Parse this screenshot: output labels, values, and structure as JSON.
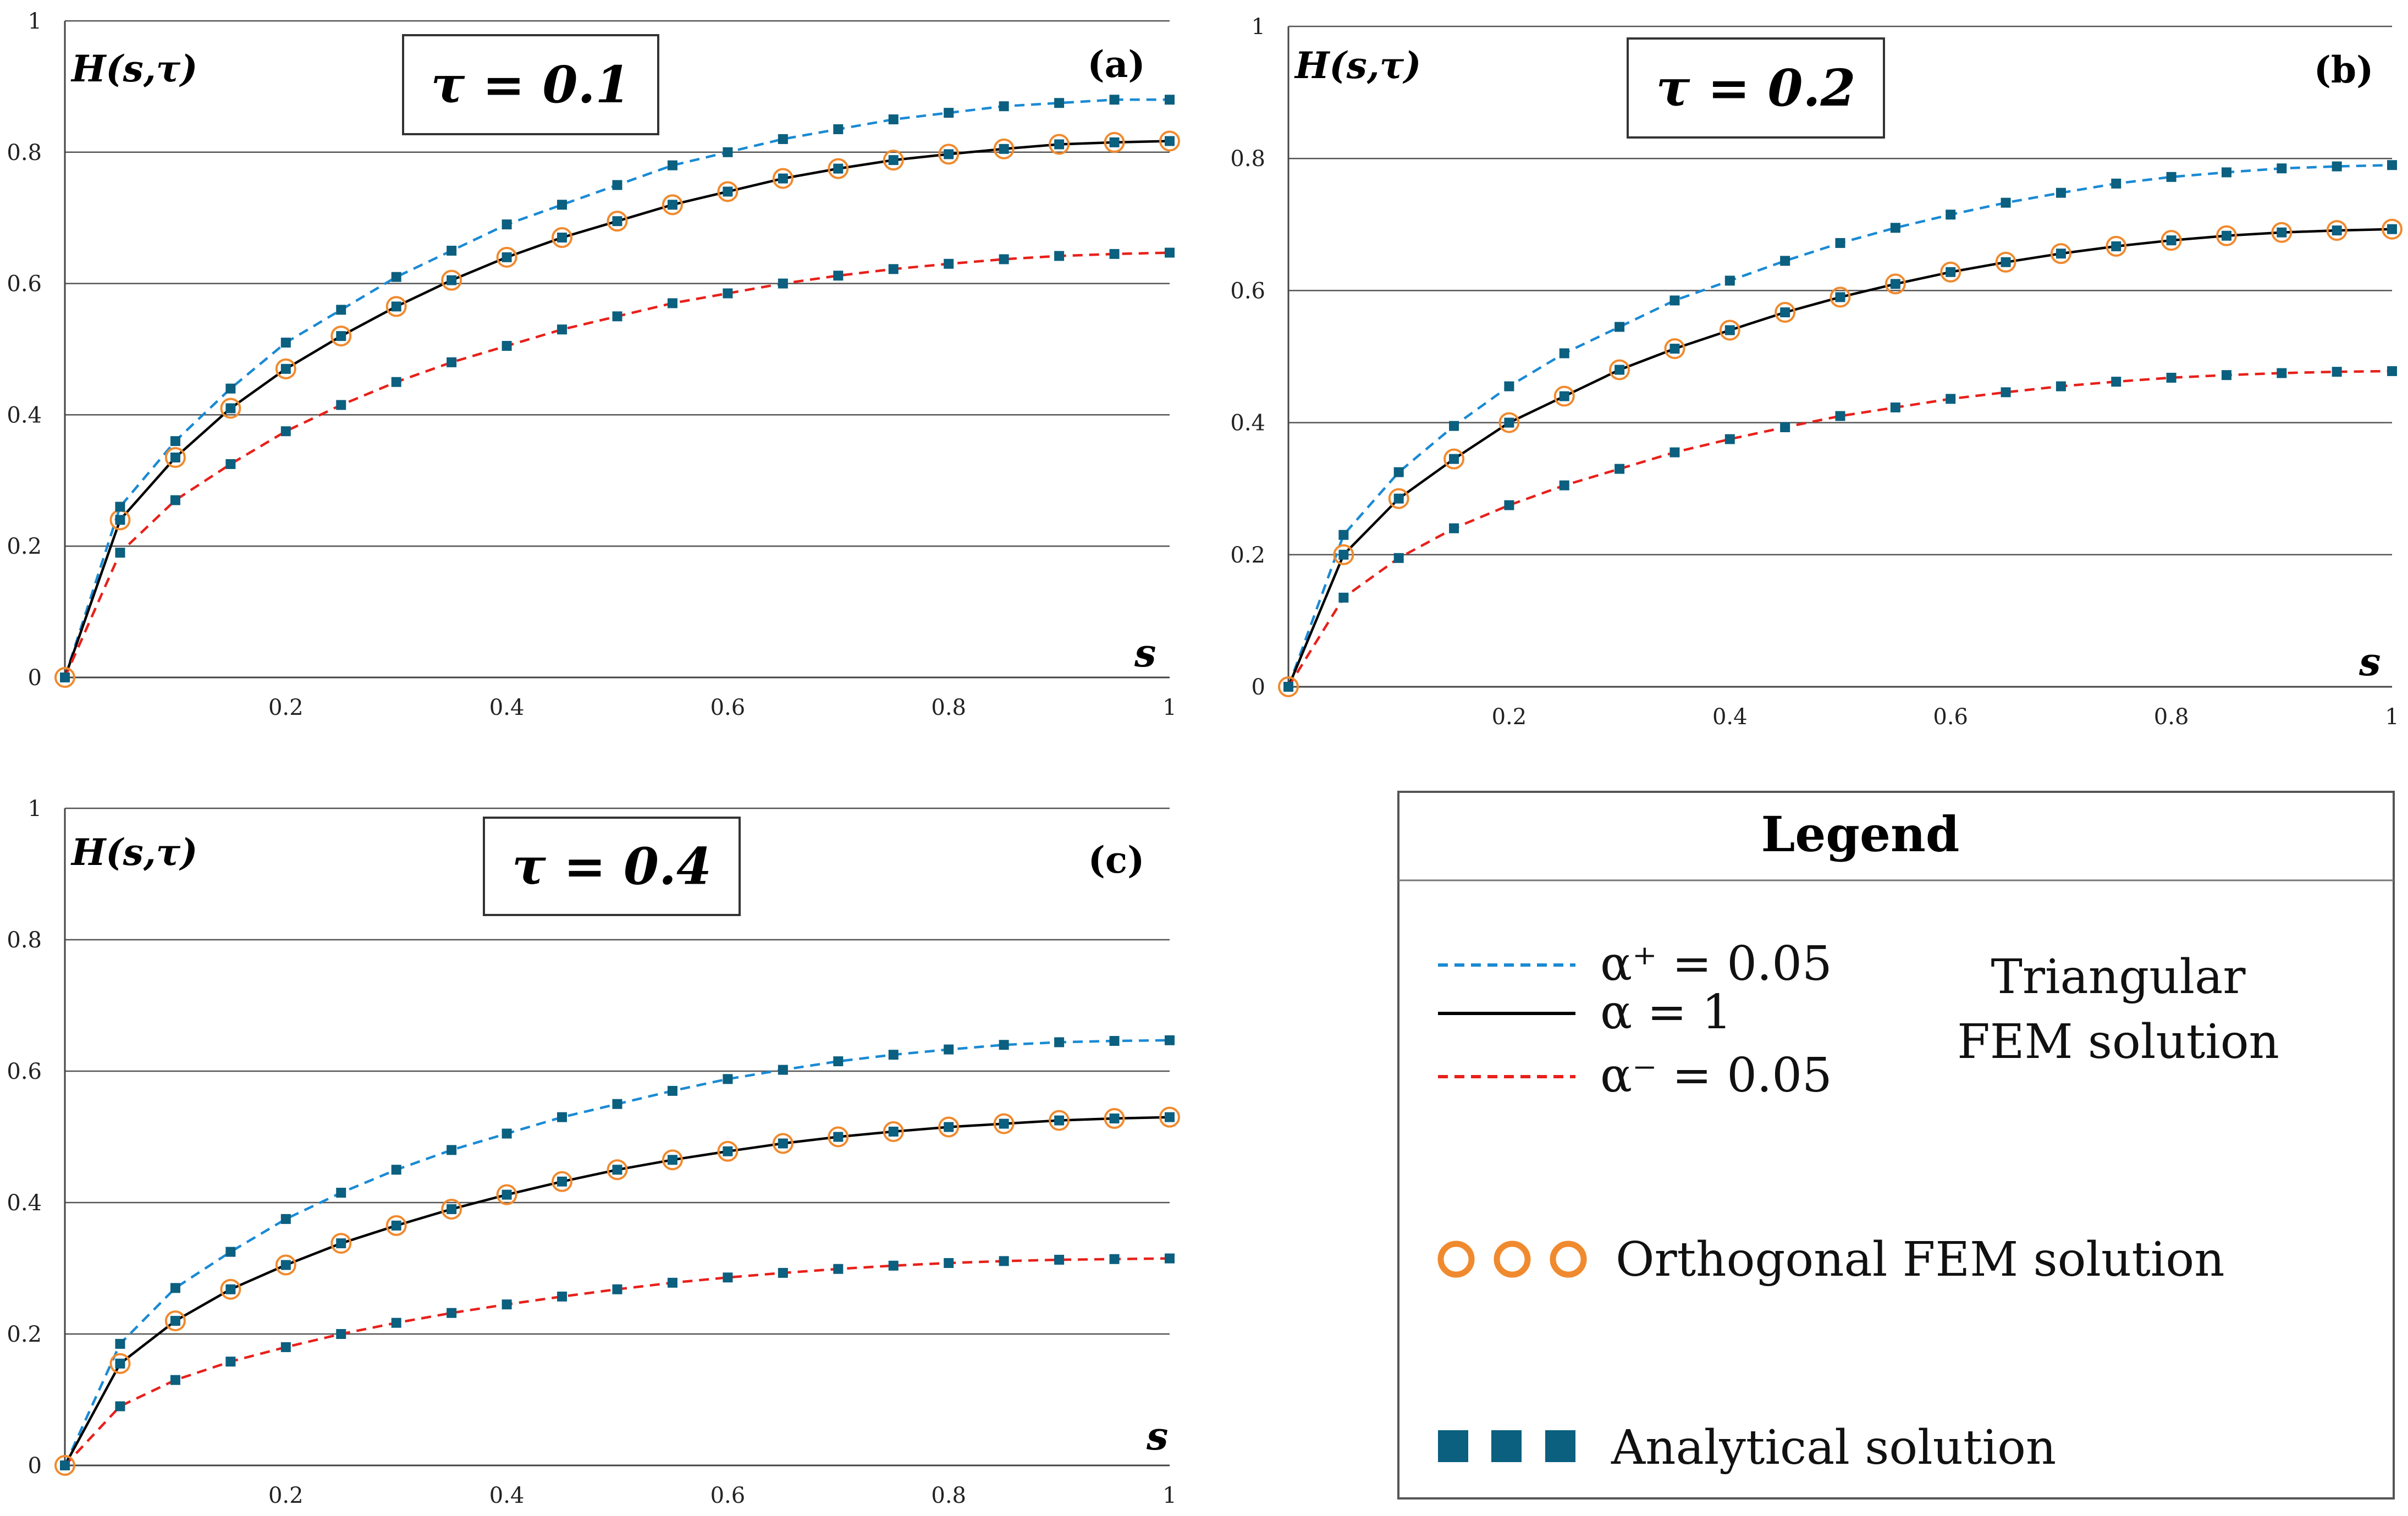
{
  "colors": {
    "alpha_plus": "#1a8ad4",
    "alpha_one": "#000000",
    "alpha_minus": "#e8201a",
    "orthogonal": "#f08a2e",
    "analytical": "#0b5f7f"
  },
  "chart_data": [
    {
      "type": "line",
      "panel_label": "(a)",
      "tau_label": "τ = 0.1",
      "ylabel": "H(s,τ)",
      "xlabel": "s",
      "xlim": [
        0,
        1
      ],
      "ylim": [
        0,
        1
      ],
      "x_tick_labels": [
        "0.2",
        "0.4",
        "0.6",
        "0.8",
        "1"
      ],
      "y_tick_labels": [
        "0",
        "0.2",
        "0.4",
        "0.6",
        "0.8",
        "1"
      ],
      "grid": true,
      "x": [
        0,
        0.05,
        0.1,
        0.15,
        0.2,
        0.25,
        0.3,
        0.35,
        0.4,
        0.45,
        0.5,
        0.55,
        0.6,
        0.65,
        0.7,
        0.75,
        0.8,
        0.85,
        0.9,
        0.95,
        1
      ],
      "series": [
        {
          "name": "α⁺ = 0.05",
          "values": [
            0,
            0.26,
            0.36,
            0.44,
            0.51,
            0.56,
            0.61,
            0.65,
            0.69,
            0.72,
            0.75,
            0.78,
            0.8,
            0.82,
            0.835,
            0.85,
            0.86,
            0.87,
            0.875,
            0.88,
            0.88
          ]
        },
        {
          "name": "α = 1",
          "values": [
            0,
            0.24,
            0.335,
            0.41,
            0.47,
            0.52,
            0.565,
            0.605,
            0.64,
            0.67,
            0.695,
            0.72,
            0.74,
            0.76,
            0.775,
            0.788,
            0.797,
            0.805,
            0.812,
            0.815,
            0.817
          ]
        },
        {
          "name": "α⁻ = 0.05",
          "values": [
            0,
            0.19,
            0.27,
            0.325,
            0.375,
            0.415,
            0.45,
            0.48,
            0.505,
            0.53,
            0.55,
            0.57,
            0.585,
            0.6,
            0.612,
            0.622,
            0.63,
            0.637,
            0.642,
            0.645,
            0.647
          ]
        }
      ]
    },
    {
      "type": "line",
      "panel_label": "(b)",
      "tau_label": "τ = 0.2",
      "ylabel": "H(s,τ)",
      "xlabel": "s",
      "xlim": [
        0,
        1
      ],
      "ylim": [
        0,
        1
      ],
      "x_tick_labels": [
        "0.2",
        "0.4",
        "0.6",
        "0.8",
        "1"
      ],
      "y_tick_labels": [
        "0",
        "0.2",
        "0.4",
        "0.6",
        "0.8",
        "1"
      ],
      "grid": true,
      "x": [
        0,
        0.05,
        0.1,
        0.15,
        0.2,
        0.25,
        0.3,
        0.35,
        0.4,
        0.45,
        0.5,
        0.55,
        0.6,
        0.65,
        0.7,
        0.75,
        0.8,
        0.85,
        0.9,
        0.95,
        1
      ],
      "series": [
        {
          "name": "α⁺ = 0.05",
          "values": [
            0,
            0.23,
            0.325,
            0.395,
            0.455,
            0.505,
            0.545,
            0.585,
            0.615,
            0.645,
            0.672,
            0.695,
            0.715,
            0.733,
            0.748,
            0.762,
            0.772,
            0.779,
            0.785,
            0.788,
            0.79
          ]
        },
        {
          "name": "α = 1",
          "values": [
            0,
            0.2,
            0.285,
            0.345,
            0.4,
            0.44,
            0.48,
            0.512,
            0.54,
            0.567,
            0.59,
            0.61,
            0.628,
            0.643,
            0.656,
            0.667,
            0.676,
            0.683,
            0.688,
            0.691,
            0.693
          ]
        },
        {
          "name": "α⁻ = 0.05",
          "values": [
            0,
            0.135,
            0.195,
            0.24,
            0.275,
            0.305,
            0.33,
            0.355,
            0.375,
            0.393,
            0.41,
            0.423,
            0.436,
            0.446,
            0.455,
            0.462,
            0.468,
            0.472,
            0.475,
            0.477,
            0.478
          ]
        }
      ]
    },
    {
      "type": "line",
      "panel_label": "(c)",
      "tau_label": "τ = 0.4",
      "ylabel": "H(s,τ)",
      "xlabel": "s",
      "xlim": [
        0,
        1
      ],
      "ylim": [
        0,
        1
      ],
      "x_tick_labels": [
        "0.2",
        "0.4",
        "0.6",
        "0.8",
        "1"
      ],
      "y_tick_labels": [
        "0",
        "0.2",
        "0.4",
        "0.6",
        "0.8",
        "1"
      ],
      "grid": true,
      "x": [
        0,
        0.05,
        0.1,
        0.15,
        0.2,
        0.25,
        0.3,
        0.35,
        0.4,
        0.45,
        0.5,
        0.55,
        0.6,
        0.65,
        0.7,
        0.75,
        0.8,
        0.85,
        0.9,
        0.95,
        1
      ],
      "series": [
        {
          "name": "α⁺ = 0.05",
          "values": [
            0,
            0.185,
            0.27,
            0.325,
            0.375,
            0.415,
            0.45,
            0.48,
            0.505,
            0.53,
            0.55,
            0.57,
            0.588,
            0.602,
            0.615,
            0.625,
            0.633,
            0.64,
            0.644,
            0.646,
            0.647
          ]
        },
        {
          "name": "α = 1",
          "values": [
            0,
            0.155,
            0.22,
            0.268,
            0.305,
            0.338,
            0.365,
            0.39,
            0.412,
            0.432,
            0.45,
            0.465,
            0.478,
            0.49,
            0.5,
            0.508,
            0.515,
            0.52,
            0.525,
            0.528,
            0.53
          ]
        },
        {
          "name": "α⁻ = 0.05",
          "values": [
            0,
            0.09,
            0.13,
            0.158,
            0.18,
            0.2,
            0.217,
            0.232,
            0.245,
            0.257,
            0.268,
            0.278,
            0.286,
            0.293,
            0.299,
            0.304,
            0.308,
            0.311,
            0.313,
            0.314,
            0.315
          ]
        }
      ]
    }
  ],
  "legend": {
    "title": "Legend",
    "alpha_plus": "α⁺ = 0.05",
    "alpha_one": "α = 1",
    "alpha_minus": "α⁻ = 0.05",
    "triangular_line1": "Triangular",
    "triangular_line2": "FEM solution",
    "orthogonal": "Orthogonal FEM solution",
    "analytical": "Analytical solution"
  }
}
